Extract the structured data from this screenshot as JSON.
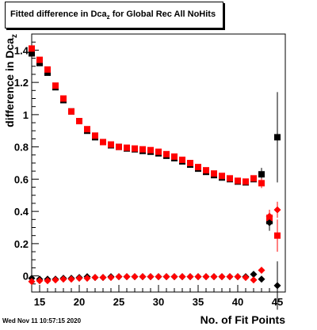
{
  "title": {
    "main": "Fitted difference in Dca",
    "subscript": "z",
    "suffix": " for Global Rec All NoHits"
  },
  "timestamp": "Wed Nov 11 10:57:15 2020",
  "chart_data": {
    "type": "scatter",
    "title": "Fitted difference in Dca_z for Global Rec All NoHits",
    "xlabel": "No. of Fit Points",
    "ylabel": "difference in Dca",
    "ylabel_subscript": "z",
    "xlim": [
      14,
      46
    ],
    "ylim": [
      -0.1,
      1.5
    ],
    "x_ticks": [
      15,
      20,
      25,
      30,
      35,
      40,
      45
    ],
    "y_ticks": [
      0,
      0.2,
      0.4,
      0.6,
      0.8,
      1,
      1.2,
      1.4
    ],
    "y_tick_labels": [
      "0",
      "0.2",
      "0.4",
      "0.6",
      "0.8",
      "1",
      "1.2",
      "1.4"
    ],
    "grid": false,
    "series": [
      {
        "marker": "square",
        "color": "#000000",
        "points": [
          {
            "x": 14,
            "y": 1.38
          },
          {
            "x": 15,
            "y": 1.32
          },
          {
            "x": 16,
            "y": 1.26
          },
          {
            "x": 17,
            "y": 1.17
          },
          {
            "x": 18,
            "y": 1.09
          },
          {
            "x": 19,
            "y": 1.02
          },
          {
            "x": 20,
            "y": 0.96
          },
          {
            "x": 21,
            "y": 0.9
          },
          {
            "x": 22,
            "y": 0.86
          },
          {
            "x": 23,
            "y": 0.83
          },
          {
            "x": 24,
            "y": 0.81
          },
          {
            "x": 25,
            "y": 0.8
          },
          {
            "x": 26,
            "y": 0.79
          },
          {
            "x": 27,
            "y": 0.785
          },
          {
            "x": 28,
            "y": 0.775
          },
          {
            "x": 29,
            "y": 0.77
          },
          {
            "x": 30,
            "y": 0.76
          },
          {
            "x": 31,
            "y": 0.745
          },
          {
            "x": 32,
            "y": 0.73
          },
          {
            "x": 33,
            "y": 0.71
          },
          {
            "x": 34,
            "y": 0.69
          },
          {
            "x": 35,
            "y": 0.665
          },
          {
            "x": 36,
            "y": 0.645
          },
          {
            "x": 37,
            "y": 0.625
          },
          {
            "x": 38,
            "y": 0.61
          },
          {
            "x": 39,
            "y": 0.6
          },
          {
            "x": 40,
            "y": 0.585
          },
          {
            "x": 41,
            "y": 0.58
          },
          {
            "x": 42,
            "y": 0.6
          },
          {
            "x": 43,
            "y": 0.63,
            "err": 0.04
          },
          {
            "x": 44,
            "y": 0.34,
            "err": 0.06
          },
          {
            "x": 45,
            "y": 0.86,
            "err": 0.28
          }
        ]
      },
      {
        "marker": "square",
        "color": "#ff0000",
        "points": [
          {
            "x": 14,
            "y": 1.41
          },
          {
            "x": 15,
            "y": 1.34
          },
          {
            "x": 16,
            "y": 1.28
          },
          {
            "x": 17,
            "y": 1.18
          },
          {
            "x": 18,
            "y": 1.1
          },
          {
            "x": 19,
            "y": 1.02
          },
          {
            "x": 20,
            "y": 0.96
          },
          {
            "x": 21,
            "y": 0.91
          },
          {
            "x": 22,
            "y": 0.87
          },
          {
            "x": 23,
            "y": 0.83
          },
          {
            "x": 24,
            "y": 0.815
          },
          {
            "x": 25,
            "y": 0.8
          },
          {
            "x": 26,
            "y": 0.795
          },
          {
            "x": 27,
            "y": 0.79
          },
          {
            "x": 28,
            "y": 0.785
          },
          {
            "x": 29,
            "y": 0.78
          },
          {
            "x": 30,
            "y": 0.77
          },
          {
            "x": 31,
            "y": 0.755
          },
          {
            "x": 32,
            "y": 0.74
          },
          {
            "x": 33,
            "y": 0.72
          },
          {
            "x": 34,
            "y": 0.7
          },
          {
            "x": 35,
            "y": 0.675
          },
          {
            "x": 36,
            "y": 0.655
          },
          {
            "x": 37,
            "y": 0.635
          },
          {
            "x": 38,
            "y": 0.62
          },
          {
            "x": 39,
            "y": 0.605
          },
          {
            "x": 40,
            "y": 0.59
          },
          {
            "x": 41,
            "y": 0.585
          },
          {
            "x": 42,
            "y": 0.605
          },
          {
            "x": 43,
            "y": 0.575,
            "err": 0.03
          },
          {
            "x": 44,
            "y": 0.36,
            "err": 0.05
          },
          {
            "x": 45,
            "y": 0.25,
            "err": 0.1
          }
        ]
      },
      {
        "marker": "diamond",
        "color": "#000000",
        "points": [
          {
            "x": 14,
            "y": -0.015
          },
          {
            "x": 15,
            "y": -0.02
          },
          {
            "x": 16,
            "y": -0.02
          },
          {
            "x": 17,
            "y": -0.02
          },
          {
            "x": 18,
            "y": -0.015
          },
          {
            "x": 19,
            "y": -0.015
          },
          {
            "x": 20,
            "y": -0.01
          },
          {
            "x": 21,
            "y": -0.005
          },
          {
            "x": 22,
            "y": -0.01
          },
          {
            "x": 23,
            "y": -0.01
          },
          {
            "x": 24,
            "y": -0.005
          },
          {
            "x": 25,
            "y": -0.005
          },
          {
            "x": 26,
            "y": -0.005
          },
          {
            "x": 27,
            "y": -0.005
          },
          {
            "x": 28,
            "y": -0.005
          },
          {
            "x": 29,
            "y": -0.005
          },
          {
            "x": 30,
            "y": -0.005
          },
          {
            "x": 31,
            "y": -0.005
          },
          {
            "x": 32,
            "y": -0.005
          },
          {
            "x": 33,
            "y": -0.005
          },
          {
            "x": 34,
            "y": -0.005
          },
          {
            "x": 35,
            "y": -0.005
          },
          {
            "x": 36,
            "y": -0.005
          },
          {
            "x": 37,
            "y": -0.005
          },
          {
            "x": 38,
            "y": -0.005
          },
          {
            "x": 39,
            "y": -0.005
          },
          {
            "x": 40,
            "y": -0.005
          },
          {
            "x": 41,
            "y": -0.005
          },
          {
            "x": 42,
            "y": 0.01,
            "err": 0.01
          },
          {
            "x": 43,
            "y": -0.02,
            "err": 0.01
          },
          {
            "x": 44,
            "y": 0.33,
            "err": 0.04
          },
          {
            "x": 45,
            "y": -0.06,
            "err": 0.15
          }
        ]
      },
      {
        "marker": "diamond",
        "color": "#ff0000",
        "points": [
          {
            "x": 14,
            "y": -0.035
          },
          {
            "x": 15,
            "y": -0.03
          },
          {
            "x": 16,
            "y": -0.03
          },
          {
            "x": 17,
            "y": -0.025
          },
          {
            "x": 18,
            "y": -0.02
          },
          {
            "x": 19,
            "y": -0.02
          },
          {
            "x": 20,
            "y": -0.015
          },
          {
            "x": 21,
            "y": -0.015
          },
          {
            "x": 22,
            "y": -0.01
          },
          {
            "x": 23,
            "y": -0.01
          },
          {
            "x": 24,
            "y": -0.01
          },
          {
            "x": 25,
            "y": -0.005
          },
          {
            "x": 26,
            "y": -0.005
          },
          {
            "x": 27,
            "y": -0.005
          },
          {
            "x": 28,
            "y": -0.005
          },
          {
            "x": 29,
            "y": -0.005
          },
          {
            "x": 30,
            "y": -0.005
          },
          {
            "x": 31,
            "y": -0.005
          },
          {
            "x": 32,
            "y": -0.005
          },
          {
            "x": 33,
            "y": -0.005
          },
          {
            "x": 34,
            "y": -0.005
          },
          {
            "x": 35,
            "y": -0.005
          },
          {
            "x": 36,
            "y": -0.005
          },
          {
            "x": 37,
            "y": -0.005
          },
          {
            "x": 38,
            "y": -0.005
          },
          {
            "x": 39,
            "y": -0.005
          },
          {
            "x": 40,
            "y": -0.005
          },
          {
            "x": 41,
            "y": -0.01
          },
          {
            "x": 42,
            "y": -0.025,
            "err": 0.01
          },
          {
            "x": 43,
            "y": 0.035,
            "err": 0.02
          },
          {
            "x": 44,
            "y": 0.37,
            "err": 0.04
          },
          {
            "x": 45,
            "y": 0.41,
            "err": 0.05
          }
        ]
      }
    ]
  }
}
